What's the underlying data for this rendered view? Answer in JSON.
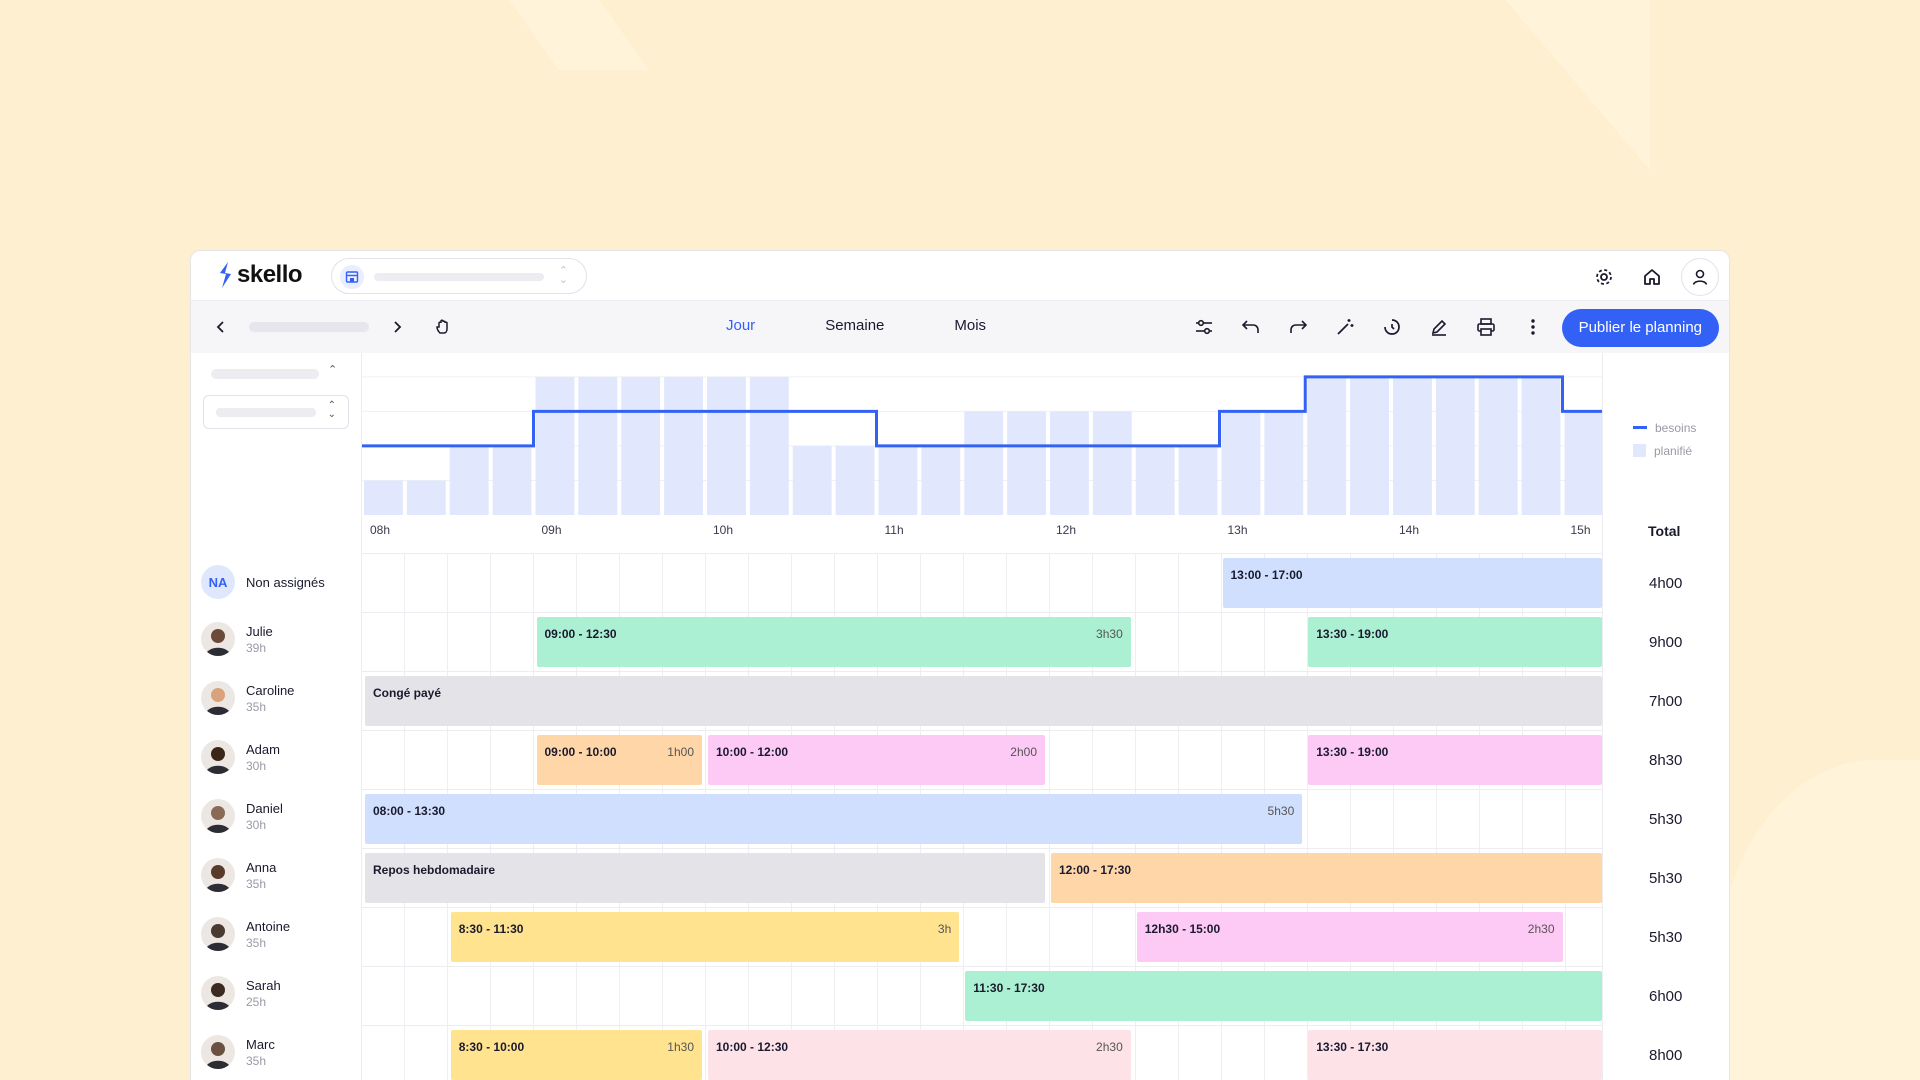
{
  "app": {
    "logo_text": "skello"
  },
  "views": {
    "day": "Jour",
    "week": "Semaine",
    "month": "Mois"
  },
  "toolbar": {
    "publish_label": "Publier le planning"
  },
  "legend": {
    "needs": "besoins",
    "planned": "planifié"
  },
  "hours_axis": [
    "08h",
    "09h",
    "10h",
    "11h",
    "12h",
    "13h",
    "14h",
    "15h"
  ],
  "total_label": "Total",
  "colors": {
    "accent": "#3461f5",
    "needs_line": "#3461f5",
    "planned_bar": "#e1e8fd",
    "background": "#fdefcf"
  },
  "chart_data": {
    "type": "bar",
    "x": [
      "08:00",
      "08:15",
      "08:30",
      "08:45",
      "09:00",
      "09:15",
      "09:30",
      "09:45",
      "10:00",
      "10:15",
      "10:30",
      "10:45",
      "11:00",
      "11:15",
      "11:30",
      "11:45",
      "12:00",
      "12:15",
      "12:30",
      "12:45",
      "13:00",
      "13:15",
      "13:30",
      "13:45",
      "14:00",
      "14:15",
      "14:30",
      "14:45",
      "15:00"
    ],
    "series": [
      {
        "name": "planifié",
        "type": "bar",
        "values": [
          1,
          1,
          2,
          2,
          4,
          4,
          4,
          4,
          4,
          4,
          2,
          2,
          2,
          2,
          3,
          3,
          3,
          3,
          2,
          2,
          3,
          3,
          4,
          4,
          4,
          4,
          4,
          4,
          3
        ]
      },
      {
        "name": "besoins",
        "type": "step",
        "values": [
          2,
          2,
          2,
          2,
          3,
          3,
          3,
          3,
          3,
          3,
          3,
          3,
          2,
          2,
          2,
          2,
          2,
          2,
          2,
          2,
          3,
          3,
          4,
          4,
          4,
          4,
          4,
          4,
          3
        ]
      }
    ],
    "ylim": [
      0,
      4.4
    ]
  },
  "rows": [
    {
      "initials": "NA",
      "name": "Non assignés",
      "hours": "",
      "total": "4h00",
      "shifts": [
        {
          "label": "13:00 - 17:00",
          "duration": "",
          "color": "blue",
          "start": "13:00",
          "end": "17:00"
        }
      ]
    },
    {
      "name": "Julie",
      "hours": "39h",
      "total": "9h00",
      "avatar_color": "#6b4a3a",
      "shifts": [
        {
          "label": "09:00 - 12:30",
          "duration": "3h30",
          "color": "green",
          "start": "09:00",
          "end": "12:30"
        },
        {
          "label": "13:30 - 19:00",
          "duration": "",
          "color": "green",
          "start": "13:30",
          "end": "19:00"
        }
      ]
    },
    {
      "name": "Caroline",
      "hours": "35h",
      "total": "7h00",
      "avatar_color": "#d9a27c",
      "shifts": [
        {
          "label": "Congé payé",
          "duration": "",
          "color": "gray",
          "start": "08:00",
          "end": "19:00"
        }
      ]
    },
    {
      "name": "Adam",
      "hours": "30h",
      "total": "8h30",
      "avatar_color": "#3b2618",
      "shifts": [
        {
          "label": "09:00 - 10:00",
          "duration": "1h00",
          "color": "orange",
          "start": "09:00",
          "end": "10:00"
        },
        {
          "label": "10:00 - 12:00",
          "duration": "2h00",
          "color": "pink",
          "start": "10:00",
          "end": "12:00"
        },
        {
          "label": "13:30 - 19:00",
          "duration": "",
          "color": "pink",
          "start": "13:30",
          "end": "19:00"
        }
      ]
    },
    {
      "name": "Daniel",
      "hours": "30h",
      "total": "5h30",
      "avatar_color": "#8a6a55",
      "shifts": [
        {
          "label": "08:00 - 13:30",
          "duration": "5h30",
          "color": "blue",
          "start": "08:00",
          "end": "13:30"
        }
      ]
    },
    {
      "name": "Anna",
      "hours": "35h",
      "total": "5h30",
      "avatar_color": "#5a3b2b",
      "shifts": [
        {
          "label": "Repos hebdomadaire",
          "duration": "",
          "color": "gray",
          "start": "08:00",
          "end": "12:00"
        },
        {
          "label": "12:00 - 17:30",
          "duration": "",
          "color": "orange",
          "start": "12:00",
          "end": "17:30"
        }
      ]
    },
    {
      "name": "Antoine",
      "hours": "35h",
      "total": "5h30",
      "avatar_color": "#4a3a30",
      "shifts": [
        {
          "label": "8:30 - 11:30",
          "duration": "3h",
          "color": "yellow",
          "start": "08:30",
          "end": "11:30"
        },
        {
          "label": "12h30 - 15:00",
          "duration": "2h30",
          "color": "pink",
          "start": "12:30",
          "end": "15:00"
        }
      ]
    },
    {
      "name": "Sarah",
      "hours": "25h",
      "total": "6h00",
      "avatar_color": "#3a2a22",
      "shifts": [
        {
          "label": "11:30 - 17:30",
          "duration": "",
          "color": "green",
          "start": "11:30",
          "end": "17:30"
        }
      ]
    },
    {
      "name": "Marc",
      "hours": "35h",
      "total": "8h00",
      "avatar_color": "#6a5040",
      "shifts": [
        {
          "label": "8:30 - 10:00",
          "duration": "1h30",
          "color": "yellow",
          "start": "08:30",
          "end": "10:00"
        },
        {
          "label": "10:00 - 12:30",
          "duration": "2h30",
          "color": "lightpink",
          "start": "10:00",
          "end": "12:30"
        },
        {
          "label": "13:30 - 17:30",
          "duration": "",
          "color": "lightpink",
          "start": "13:30",
          "end": "17:30"
        }
      ]
    }
  ]
}
